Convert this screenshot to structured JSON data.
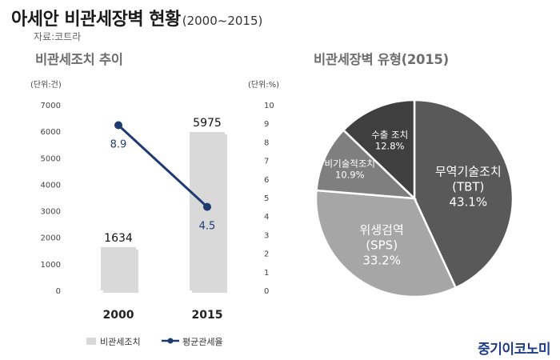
{
  "header": {
    "title": "아세안 비관세장벽 현황",
    "title_period": "(2000~2015)",
    "source": "자료:코트라"
  },
  "left_section_title": "비관세조치 추이",
  "right_section_title": "비관세장벽 유형(2015)",
  "logo": "중기이코노미",
  "chart_data": [
    {
      "type": "bar",
      "categories": [
        "2000",
        "2015"
      ],
      "y_left_unit": "(단위:건)",
      "y_right_unit": "(단위:%)",
      "ylim_left": [
        0,
        7000
      ],
      "ylim_right": [
        0,
        10
      ],
      "left_ticks": [
        "0",
        "1000",
        "2000",
        "3000",
        "4000",
        "5000",
        "6000",
        "7000"
      ],
      "right_ticks": [
        "0",
        "1",
        "2",
        "3",
        "4",
        "5",
        "6",
        "7",
        "8",
        "9",
        "10"
      ],
      "series": [
        {
          "name": "비관세조치",
          "kind": "bar",
          "axis": "left",
          "values": [
            1634,
            5975
          ],
          "labels": [
            "1634",
            "5975"
          ],
          "color": "#d9d9d9"
        },
        {
          "name": "평균관세율",
          "kind": "line",
          "axis": "right",
          "values": [
            8.9,
            4.5
          ],
          "labels": [
            "8.9",
            "4.5"
          ],
          "color": "#1f3a6e"
        }
      ],
      "legend_position": "bottom"
    },
    {
      "type": "pie",
      "slices": [
        {
          "label_line1": "무역기술조치",
          "label_line2": "(TBT)",
          "pct_text": "43.1%",
          "value": 43.1,
          "color": "#595959"
        },
        {
          "label_line1": "위생검역",
          "label_line2": "(SPS)",
          "pct_text": "33.2%",
          "value": 33.2,
          "color": "#a6a6a6"
        },
        {
          "label_line1": "비기술적조치",
          "label_line2": "",
          "pct_text": "10.9%",
          "value": 10.9,
          "color": "#7f7f7f"
        },
        {
          "label_line1": "수출 조치",
          "label_line2": "",
          "pct_text": "12.8%",
          "value": 12.8,
          "color": "#3f3f3f"
        }
      ]
    }
  ]
}
